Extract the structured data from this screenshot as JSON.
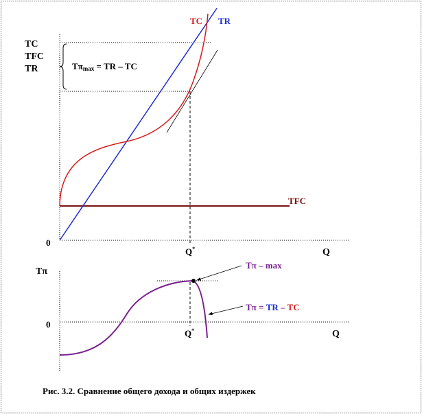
{
  "top_chart": {
    "y_axis_labels": [
      "TC",
      "TFC",
      "TR"
    ],
    "x_axis_label": "Q",
    "origin_label": "0",
    "q_star_label": "Q",
    "q_star_sup": "*",
    "profit_bracket_main": "Tπ",
    "profit_bracket_sub": "max",
    "profit_bracket_rest": " = TR – TC",
    "series": [
      {
        "name": "TC",
        "color": "#d81b1b"
      },
      {
        "name": "TR",
        "color": "#1e2fd1"
      },
      {
        "name": "TFC",
        "color": "#7a1010"
      }
    ]
  },
  "bottom_chart": {
    "y_axis_label": "Tπ",
    "x_axis_label": "Q",
    "zero_label": "0",
    "q_star_label": "Q",
    "q_star_sup": "*",
    "max_annotation": "Tπ – max",
    "formula_prefix": "Tπ = ",
    "formula_tr": "TR",
    "formula_minus": " – ",
    "formula_tc": "TC",
    "curve_color": "#7a1f8f"
  },
  "caption": "Рис. 3.2. Сравнение общего дохода и общих издержек"
}
